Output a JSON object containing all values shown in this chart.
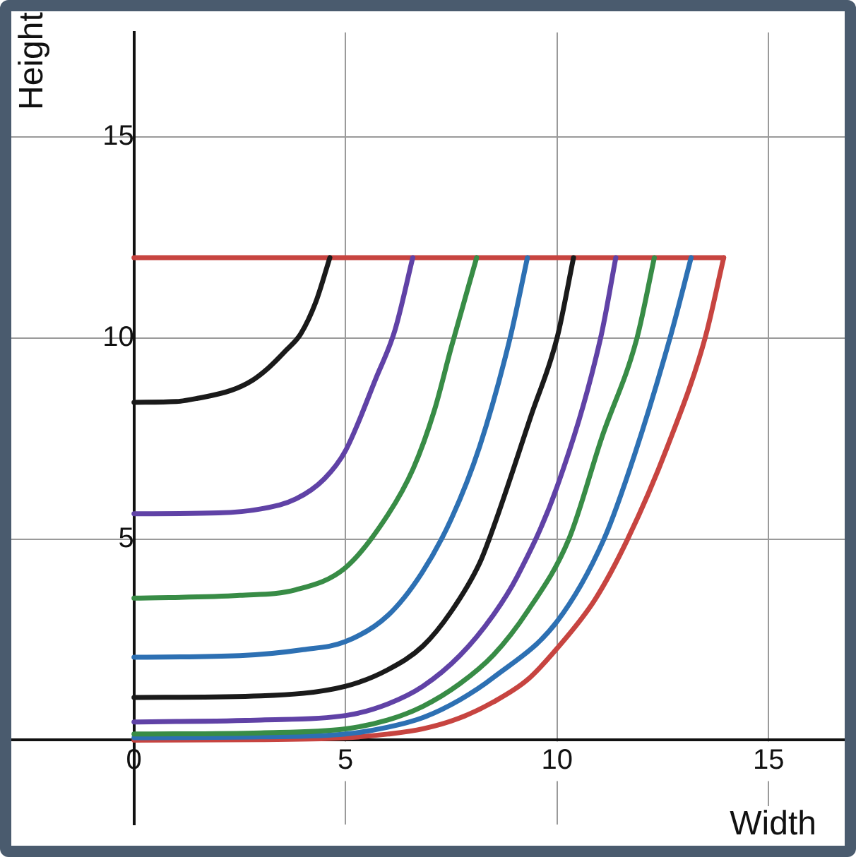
{
  "chart_data": {
    "type": "line",
    "xlabel": "Width",
    "ylabel": "Height",
    "xlim": [
      -2.9,
      16.8
    ],
    "ylim": [
      -2.1,
      17.6
    ],
    "xticks": [
      0,
      5,
      10,
      15
    ],
    "yticks": [
      {
        "value": 0,
        "label": null
      },
      5,
      10,
      15
    ],
    "grid": true,
    "legend": false,
    "marker": "none",
    "line_style": "solid",
    "series": [
      {
        "color": "#1a1a1a",
        "x": [
          0,
          1,
          1.5,
          2.3,
          2.8,
          3.17,
          3.6,
          3.94,
          4.3,
          4.63
        ],
        "values": [
          8.4,
          8.42,
          8.5,
          8.7,
          8.95,
          9.25,
          9.7,
          10.1,
          10.9,
          12
        ]
      },
      {
        "color": "#6042a6",
        "x": [
          0,
          2,
          3,
          3.83,
          4.5,
          5,
          5.72,
          6.17,
          6.59
        ],
        "values": [
          5.63,
          5.65,
          5.75,
          6.0,
          6.5,
          7.2,
          9.0,
          10.2,
          12
        ]
      },
      {
        "color": "#388c46",
        "x": [
          0,
          2.5,
          3.83,
          5,
          6,
          6.6,
          7.1,
          7.5,
          8.1
        ],
        "values": [
          3.53,
          3.6,
          3.74,
          4.29,
          5.6,
          6.75,
          8.2,
          9.77,
          12
        ]
      },
      {
        "color": "#2d70b3",
        "x": [
          0,
          2.5,
          4,
          5,
          6,
          6.8,
          7.5,
          8.17,
          8.89,
          9.3
        ],
        "values": [
          2.06,
          2.1,
          2.25,
          2.45,
          3.1,
          4.15,
          5.5,
          7.3,
          10,
          12
        ]
      },
      {
        "color": "#1a1a1a",
        "x": [
          0,
          3,
          5,
          6,
          6.83,
          7.5,
          8.17,
          8.5,
          9.39,
          10,
          10.39
        ],
        "values": [
          1.06,
          1.1,
          1.34,
          1.75,
          2.34,
          3.2,
          4.4,
          5.3,
          8.08,
          10,
          12
        ]
      },
      {
        "color": "#6042a6",
        "x": [
          0,
          3,
          5,
          6,
          6.83,
          7.7,
          8.5,
          9.06,
          10,
          11.03,
          11.39
        ],
        "values": [
          0.45,
          0.5,
          0.61,
          0.9,
          1.34,
          2.1,
          3.12,
          4.07,
          6.3,
          10,
          12
        ]
      },
      {
        "color": "#388c46",
        "x": [
          0,
          3,
          5,
          6,
          6.83,
          7.7,
          8.5,
          9.3,
          10.28,
          11.06,
          11.89,
          12.3
        ],
        "values": [
          0.15,
          0.18,
          0.28,
          0.5,
          0.84,
          1.4,
          2.12,
          3.2,
          5,
          7.53,
          10,
          12
        ]
      },
      {
        "color": "#2d70b3",
        "x": [
          0,
          3,
          5,
          6,
          6.83,
          7.7,
          8.5,
          10,
          11.11,
          11.83,
          12.67,
          13.17
        ],
        "values": [
          0.06,
          0.08,
          0.15,
          0.32,
          0.56,
          1.0,
          1.56,
          2.95,
          5,
          7.09,
          10,
          12
        ]
      },
      {
        "color": "#c74440",
        "x": [
          0,
          3,
          5,
          6,
          6.83,
          7.7,
          8.5,
          9.3,
          10,
          10.9,
          11.67,
          12.61,
          13.5,
          13.94
        ],
        "values": [
          0,
          0.01,
          0.06,
          0.15,
          0.28,
          0.55,
          0.95,
          1.5,
          2.28,
          3.5,
          5,
          7.3,
          10,
          12
        ]
      },
      {
        "color": "#c74440",
        "x": [
          0,
          13.94
        ],
        "values": [
          12,
          12
        ]
      }
    ]
  }
}
